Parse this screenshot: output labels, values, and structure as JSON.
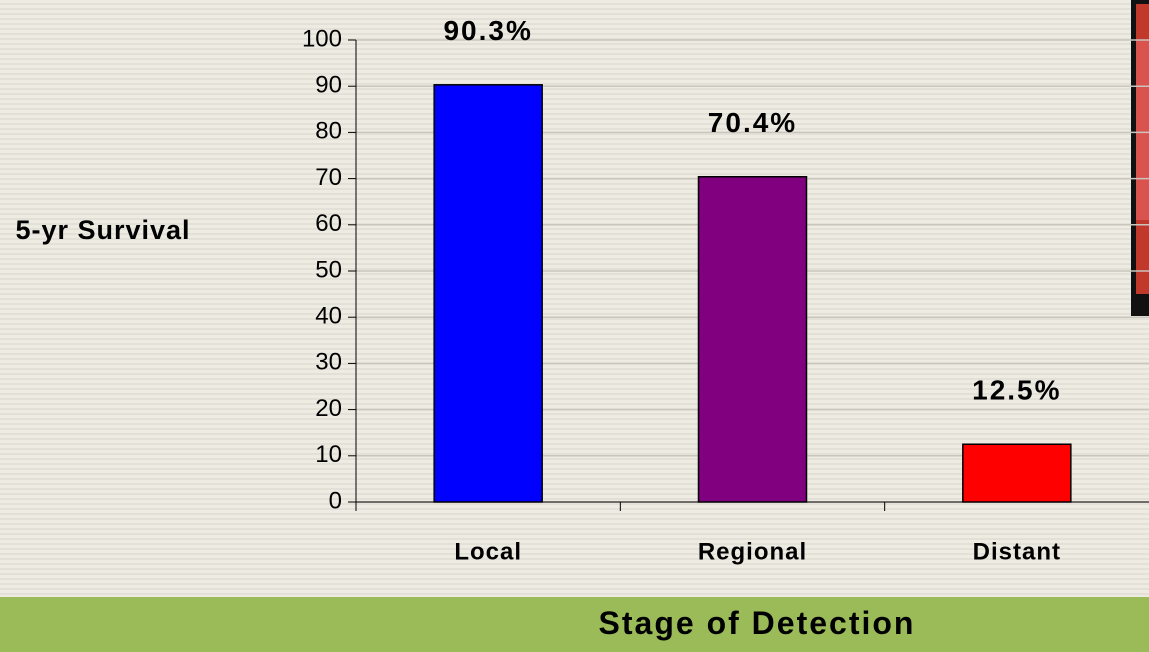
{
  "chart_data": {
    "type": "bar",
    "y_label": "5-yr Survival",
    "x_label": "Stage of Detection",
    "categories": [
      "Local",
      "Regional",
      "Distant"
    ],
    "values": [
      90.3,
      70.4,
      12.5
    ],
    "value_labels": [
      "90.3%",
      "70.4%",
      "12.5%"
    ],
    "colors": [
      "#0000ff",
      "#800080",
      "#ff0000"
    ],
    "ylim": [
      0,
      100
    ],
    "yticks": [
      0,
      10,
      20,
      30,
      40,
      50,
      60,
      70,
      80,
      90,
      100
    ],
    "grid": true
  }
}
